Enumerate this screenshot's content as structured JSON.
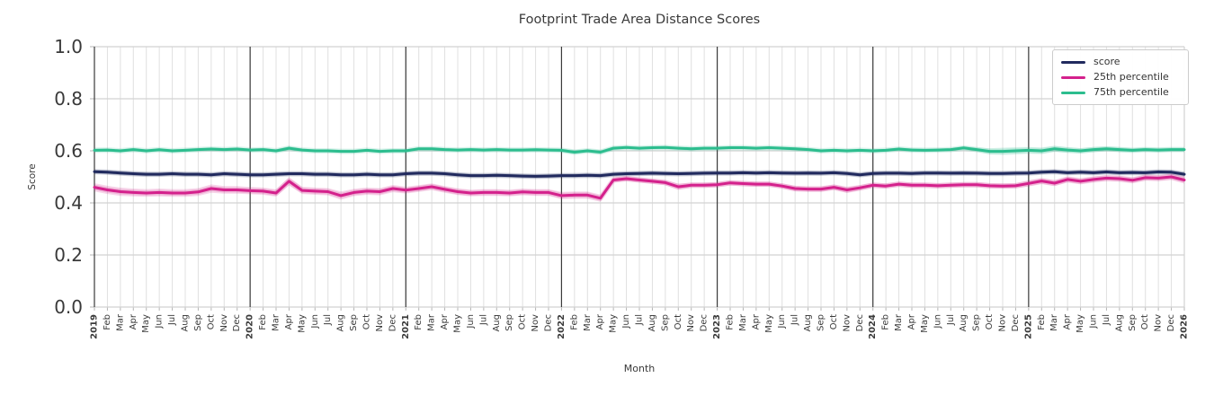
{
  "chart_data": {
    "type": "line",
    "title": "Footprint Trade Area Distance Scores",
    "xlabel": "Month",
    "ylabel": "Score",
    "ylim": [
      0.0,
      1.0
    ],
    "yticks": [
      0.0,
      0.2,
      0.4,
      0.6,
      0.8,
      1.0
    ],
    "grid": true,
    "legend_position": "upper right",
    "x_labels": [
      "2019",
      "Feb",
      "Mar",
      "Apr",
      "May",
      "Jun",
      "Jul",
      "Aug",
      "Sep",
      "Oct",
      "Nov",
      "Dec",
      "2020",
      "Feb",
      "Mar",
      "Apr",
      "May",
      "Jun",
      "Jul",
      "Aug",
      "Sep",
      "Oct",
      "Nov",
      "Dec",
      "2021",
      "Feb",
      "Mar",
      "Apr",
      "May",
      "Jun",
      "Jul",
      "Aug",
      "Sep",
      "Oct",
      "Nov",
      "Dec",
      "2022",
      "Feb",
      "Mar",
      "Apr",
      "May",
      "Jun",
      "Jul",
      "Aug",
      "Sep",
      "Oct",
      "Nov",
      "Dec",
      "2023",
      "Feb",
      "Mar",
      "Apr",
      "May",
      "Jun",
      "Jul",
      "Aug",
      "Sep",
      "Oct",
      "Nov",
      "Dec",
      "2024",
      "Feb",
      "Mar",
      "Apr",
      "May",
      "Jun",
      "Jul",
      "Aug",
      "Sep",
      "Oct",
      "Nov",
      "Dec",
      "2025",
      "Feb",
      "Mar",
      "Apr",
      "May",
      "Jun",
      "Jul",
      "Aug",
      "Sep",
      "Oct",
      "Nov",
      "Dec",
      "2026"
    ],
    "year_line_indices": [
      0,
      12,
      24,
      36,
      48,
      60,
      72
    ],
    "series": [
      {
        "name": "score",
        "color": "#212a5e",
        "band_halfwidth": 0.008,
        "values": [
          0.52,
          0.518,
          0.515,
          0.512,
          0.51,
          0.51,
          0.512,
          0.51,
          0.51,
          0.508,
          0.512,
          0.51,
          0.508,
          0.508,
          0.51,
          0.512,
          0.512,
          0.51,
          0.51,
          0.508,
          0.508,
          0.51,
          0.508,
          0.508,
          0.512,
          0.514,
          0.514,
          0.512,
          0.508,
          0.505,
          0.505,
          0.506,
          0.505,
          0.503,
          0.502,
          0.503,
          0.505,
          0.505,
          0.506,
          0.505,
          0.51,
          0.512,
          0.513,
          0.514,
          0.513,
          0.512,
          0.513,
          0.514,
          0.515,
          0.515,
          0.516,
          0.515,
          0.516,
          0.515,
          0.514,
          0.515,
          0.514,
          0.516,
          0.513,
          0.508,
          0.513,
          0.514,
          0.514,
          0.513,
          0.515,
          0.515,
          0.514,
          0.515,
          0.514,
          0.513,
          0.513,
          0.514,
          0.515,
          0.518,
          0.52,
          0.516,
          0.518,
          0.516,
          0.519,
          0.516,
          0.517,
          0.516,
          0.519,
          0.518,
          0.51
        ]
      },
      {
        "name": "25th percentile",
        "color": "#d4218c",
        "band_halfwidth": [
          0.016,
          0.016,
          0.016,
          0.015,
          0.015,
          0.015,
          0.015,
          0.015,
          0.015,
          0.016,
          0.015,
          0.015,
          0.014,
          0.014,
          0.014,
          0.016,
          0.014,
          0.014,
          0.014,
          0.016,
          0.014,
          0.014,
          0.014,
          0.014,
          0.013,
          0.013,
          0.013,
          0.013,
          0.013,
          0.013,
          0.013,
          0.013,
          0.013,
          0.013,
          0.013,
          0.013,
          0.014,
          0.014,
          0.014,
          0.014,
          0.01,
          0.01,
          0.01,
          0.01,
          0.01,
          0.012,
          0.01,
          0.01,
          0.01,
          0.01,
          0.01,
          0.01,
          0.01,
          0.01,
          0.011,
          0.011,
          0.011,
          0.011,
          0.012,
          0.011,
          0.01,
          0.01,
          0.01,
          0.01,
          0.01,
          0.01,
          0.01,
          0.01,
          0.01,
          0.01,
          0.01,
          0.01,
          0.012,
          0.012,
          0.012,
          0.012,
          0.012,
          0.012,
          0.012,
          0.012,
          0.012,
          0.012,
          0.012,
          0.012,
          0.014
        ],
        "values": [
          0.46,
          0.45,
          0.443,
          0.44,
          0.438,
          0.44,
          0.438,
          0.438,
          0.442,
          0.455,
          0.45,
          0.45,
          0.447,
          0.445,
          0.438,
          0.483,
          0.448,
          0.445,
          0.443,
          0.428,
          0.44,
          0.445,
          0.443,
          0.455,
          0.449,
          0.455,
          0.462,
          0.452,
          0.443,
          0.438,
          0.44,
          0.44,
          0.438,
          0.442,
          0.44,
          0.44,
          0.428,
          0.43,
          0.43,
          0.418,
          0.488,
          0.493,
          0.488,
          0.483,
          0.478,
          0.462,
          0.468,
          0.468,
          0.47,
          0.477,
          0.474,
          0.472,
          0.472,
          0.465,
          0.455,
          0.453,
          0.453,
          0.46,
          0.45,
          0.458,
          0.468,
          0.465,
          0.472,
          0.468,
          0.468,
          0.466,
          0.468,
          0.47,
          0.47,
          0.466,
          0.465,
          0.466,
          0.475,
          0.484,
          0.476,
          0.49,
          0.483,
          0.49,
          0.495,
          0.493,
          0.487,
          0.497,
          0.495,
          0.5,
          0.488
        ]
      },
      {
        "name": "75th percentile",
        "color": "#2cbd8e",
        "band_halfwidth": [
          0.006,
          0.006,
          0.006,
          0.006,
          0.006,
          0.006,
          0.006,
          0.006,
          0.006,
          0.006,
          0.006,
          0.006,
          0.006,
          0.006,
          0.006,
          0.008,
          0.006,
          0.006,
          0.006,
          0.006,
          0.006,
          0.006,
          0.006,
          0.006,
          0.006,
          0.006,
          0.006,
          0.006,
          0.006,
          0.006,
          0.006,
          0.006,
          0.006,
          0.006,
          0.006,
          0.006,
          0.007,
          0.008,
          0.007,
          0.008,
          0.007,
          0.006,
          0.006,
          0.006,
          0.006,
          0.006,
          0.006,
          0.006,
          0.006,
          0.006,
          0.006,
          0.006,
          0.006,
          0.006,
          0.006,
          0.006,
          0.006,
          0.006,
          0.006,
          0.006,
          0.006,
          0.006,
          0.006,
          0.006,
          0.006,
          0.006,
          0.006,
          0.007,
          0.008,
          0.012,
          0.014,
          0.014,
          0.013,
          0.013,
          0.012,
          0.011,
          0.01,
          0.01,
          0.009,
          0.009,
          0.008,
          0.008,
          0.008,
          0.008,
          0.008
        ],
        "values": [
          0.602,
          0.603,
          0.6,
          0.605,
          0.6,
          0.604,
          0.6,
          0.602,
          0.605,
          0.607,
          0.605,
          0.607,
          0.603,
          0.605,
          0.6,
          0.61,
          0.603,
          0.6,
          0.6,
          0.598,
          0.598,
          0.602,
          0.598,
          0.6,
          0.6,
          0.608,
          0.608,
          0.605,
          0.603,
          0.605,
          0.603,
          0.605,
          0.603,
          0.603,
          0.604,
          0.603,
          0.602,
          0.595,
          0.6,
          0.595,
          0.61,
          0.613,
          0.61,
          0.612,
          0.613,
          0.61,
          0.608,
          0.61,
          0.61,
          0.612,
          0.612,
          0.61,
          0.612,
          0.61,
          0.608,
          0.605,
          0.6,
          0.602,
          0.6,
          0.602,
          0.6,
          0.602,
          0.607,
          0.603,
          0.602,
          0.603,
          0.605,
          0.611,
          0.605,
          0.598,
          0.598,
          0.6,
          0.602,
          0.6,
          0.608,
          0.603,
          0.6,
          0.605,
          0.608,
          0.605,
          0.602,
          0.605,
          0.603,
          0.605,
          0.605
        ]
      }
    ]
  }
}
